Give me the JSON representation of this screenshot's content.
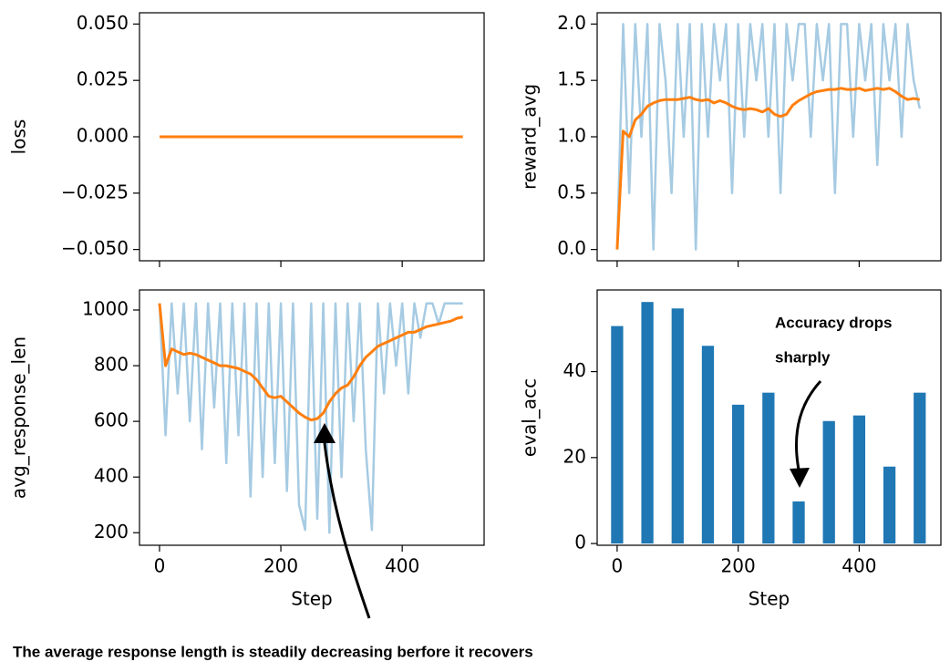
{
  "chart_data": [
    {
      "type": "line",
      "ylabel": "loss",
      "show_xtick_labels": false,
      "x": [
        0,
        500
      ],
      "series": [
        {
          "color": "#ff7f0e",
          "values": [
            0,
            0
          ]
        }
      ],
      "xlim": [
        -33,
        535
      ],
      "xticks": [
        0,
        200,
        400
      ],
      "ylim": [
        -0.055,
        0.055
      ],
      "yticks": [
        {
          "value": 0.05,
          "label": "0.050"
        },
        {
          "value": 0.025,
          "label": "0.025"
        },
        {
          "value": 0,
          "label": "0.000"
        },
        {
          "value": -0.025,
          "label": "−0.025"
        },
        {
          "value": -0.05,
          "label": "−0.050"
        }
      ]
    },
    {
      "type": "line",
      "ylabel": "reward_avg",
      "show_xtick_labels": false,
      "x": [
        0,
        10,
        20,
        30,
        40,
        50,
        60,
        70,
        80,
        90,
        100,
        110,
        120,
        130,
        140,
        150,
        160,
        170,
        180,
        190,
        200,
        210,
        220,
        230,
        240,
        250,
        260,
        270,
        280,
        290,
        300,
        310,
        320,
        330,
        340,
        350,
        360,
        370,
        380,
        390,
        400,
        410,
        420,
        430,
        440,
        450,
        460,
        470,
        480,
        490,
        500
      ],
      "series": [
        {
          "color": "#a6cbe3",
          "values": [
            0,
            2,
            0.5,
            2,
            1,
            2,
            0,
            2,
            1.5,
            0.5,
            2,
            1,
            2,
            0,
            2,
            1,
            2,
            1.5,
            2,
            0.5,
            2,
            1,
            2,
            1.5,
            2,
            1,
            2,
            0.5,
            2,
            1.5,
            2,
            2,
            1,
            2,
            1.5,
            2,
            0.5,
            2,
            2,
            1,
            2,
            1.5,
            2,
            0.75,
            2,
            1.5,
            2,
            1,
            2,
            1.5,
            1.25
          ]
        },
        {
          "color": "#ff7f0e",
          "values": [
            0,
            1.05,
            1.0,
            1.15,
            1.2,
            1.27,
            1.3,
            1.32,
            1.33,
            1.33,
            1.33,
            1.34,
            1.35,
            1.33,
            1.32,
            1.33,
            1.3,
            1.32,
            1.3,
            1.27,
            1.25,
            1.24,
            1.25,
            1.24,
            1.22,
            1.25,
            1.2,
            1.18,
            1.2,
            1.28,
            1.32,
            1.35,
            1.38,
            1.4,
            1.41,
            1.42,
            1.42,
            1.43,
            1.42,
            1.42,
            1.43,
            1.41,
            1.42,
            1.43,
            1.42,
            1.43,
            1.4,
            1.36,
            1.33,
            1.34,
            1.33
          ]
        }
      ],
      "xlim": [
        -33,
        535
      ],
      "xticks": [
        0,
        200,
        400
      ],
      "ylim": [
        -0.1,
        2.1
      ],
      "yticks": [
        {
          "value": 0,
          "label": "0.0"
        },
        {
          "value": 0.5,
          "label": "0.5"
        },
        {
          "value": 1,
          "label": "1.0"
        },
        {
          "value": 1.5,
          "label": "1.5"
        },
        {
          "value": 2,
          "label": "2.0"
        }
      ]
    },
    {
      "type": "line",
      "ylabel": "avg_response_len",
      "xlabel": "Step",
      "annotation": "The average response length is steadily decreasing berfore it recovers",
      "x": [
        0,
        10,
        20,
        30,
        40,
        50,
        60,
        70,
        80,
        90,
        100,
        110,
        120,
        130,
        140,
        150,
        160,
        170,
        180,
        190,
        200,
        210,
        220,
        230,
        240,
        250,
        260,
        270,
        280,
        290,
        300,
        310,
        320,
        330,
        340,
        350,
        360,
        370,
        380,
        390,
        400,
        410,
        420,
        430,
        440,
        450,
        460,
        470,
        480,
        490,
        500
      ],
      "series": [
        {
          "color": "#a6cbe3",
          "values": [
            1024,
            550,
            1024,
            700,
            1024,
            600,
            1024,
            500,
            1024,
            650,
            1024,
            450,
            1024,
            550,
            1024,
            330,
            1024,
            400,
            1024,
            450,
            1024,
            350,
            1024,
            300,
            210,
            1024,
            250,
            1024,
            200,
            1024,
            400,
            1024,
            600,
            1024,
            500,
            210,
            1024,
            700,
            1024,
            800,
            1024,
            700,
            1024,
            900,
            1024,
            1024,
            950,
            1024,
            1024,
            1024,
            1024
          ]
        },
        {
          "color": "#ff7f0e",
          "values": [
            1024,
            800,
            860,
            850,
            840,
            845,
            840,
            830,
            820,
            810,
            800,
            800,
            795,
            790,
            780,
            770,
            750,
            720,
            690,
            685,
            690,
            670,
            650,
            630,
            615,
            605,
            610,
            630,
            670,
            700,
            720,
            730,
            760,
            800,
            830,
            850,
            870,
            880,
            890,
            900,
            910,
            920,
            920,
            930,
            940,
            945,
            950,
            955,
            960,
            970,
            975
          ]
        }
      ],
      "xlim": [
        -33,
        535
      ],
      "xticks": [
        0,
        200,
        400
      ],
      "ylim": [
        155,
        1072
      ],
      "yticks": [
        200,
        400,
        600,
        800,
        1000
      ]
    },
    {
      "type": "bar",
      "ylabel": "eval_acc",
      "xlabel": "Step",
      "annotation": [
        "Accuracy drops",
        "sharply"
      ],
      "x": [
        0,
        50,
        100,
        150,
        200,
        250,
        300,
        350,
        400,
        450,
        500
      ],
      "values": [
        50.6,
        56.2,
        54.7,
        46,
        32.3,
        35.1,
        9.8,
        28.5,
        29.8,
        17.9,
        35.1
      ],
      "bar_width": 20,
      "color": "#1f77b4",
      "xlim": [
        -33,
        535
      ],
      "xticks": [
        0,
        200,
        400
      ],
      "ylim": [
        -0.4,
        59
      ],
      "yticks": [
        0,
        20,
        40
      ]
    }
  ]
}
